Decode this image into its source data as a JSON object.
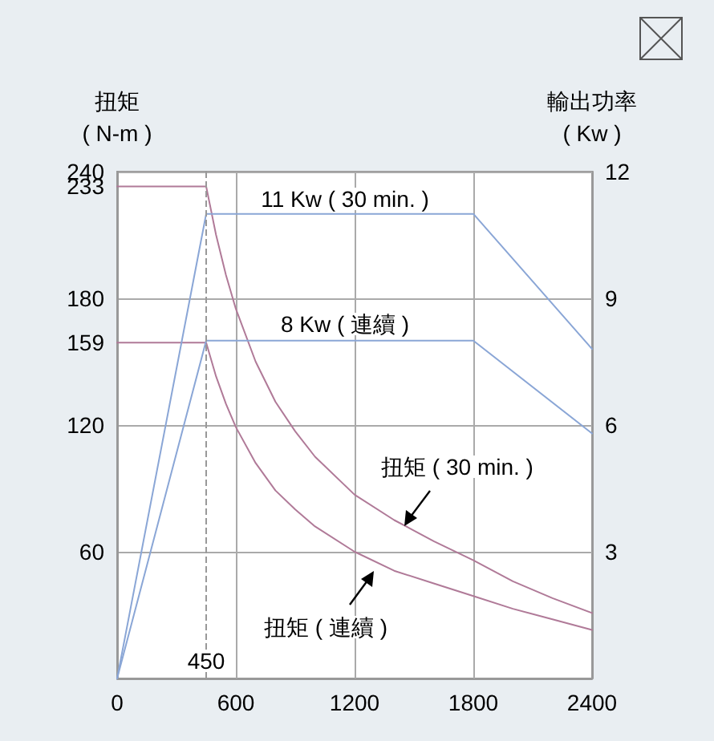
{
  "chart_data": {
    "type": "line",
    "ylabel": "扭矩\n( N-m )",
    "y2label": "輸出功率\n( Kw )",
    "xlim": [
      0,
      2400
    ],
    "xticks": [
      0,
      600,
      1200,
      1800,
      2400
    ],
    "ylim": [
      0,
      240
    ],
    "yticks": [
      60,
      120,
      159,
      180,
      233,
      240
    ],
    "y2lim": [
      0,
      12
    ],
    "y2ticks": [
      3,
      6,
      9,
      12
    ],
    "grid": true,
    "marker": "none",
    "line_style": "solid",
    "series": [
      {
        "color": "#b07a98",
        "x": [
          0,
          450,
          500,
          550,
          600,
          700,
          800,
          900,
          1000,
          1200,
          1400,
          1600,
          1800,
          2000,
          2200,
          2400
        ],
        "values": [
          233,
          233,
          210,
          191,
          175,
          150,
          131,
          117,
          105,
          87,
          75,
          65,
          56,
          46,
          38,
          31
        ]
      },
      {
        "color": "#b07a98",
        "x": [
          0,
          450,
          500,
          550,
          600,
          700,
          800,
          900,
          1000,
          1200,
          1400,
          1600,
          1800,
          2000,
          2200,
          2400
        ],
        "values": [
          159,
          159,
          143,
          130,
          119,
          102,
          89,
          80,
          72,
          60,
          51,
          45,
          39,
          33,
          28,
          23
        ]
      },
      {
        "color": "#8aa6d6",
        "axis": "y2",
        "x": [
          0,
          450,
          1800,
          2400
        ],
        "values": [
          0,
          11,
          11,
          7.8
        ]
      },
      {
        "color": "#8aa6d6",
        "axis": "y2",
        "x": [
          0,
          450,
          1800,
          2400
        ],
        "values": [
          0,
          8,
          8,
          5.8
        ]
      }
    ],
    "ref_lines": [
      {
        "axis": "x",
        "value": 450,
        "label": "450",
        "line_style": "dashed",
        "color": "#999999"
      }
    ],
    "annotations": [
      "11 Kw ( 30 min. )",
      "8 Kw ( 連續 )",
      "扭矩 ( 30 min. )",
      "扭矩 ( 連續 )"
    ]
  }
}
